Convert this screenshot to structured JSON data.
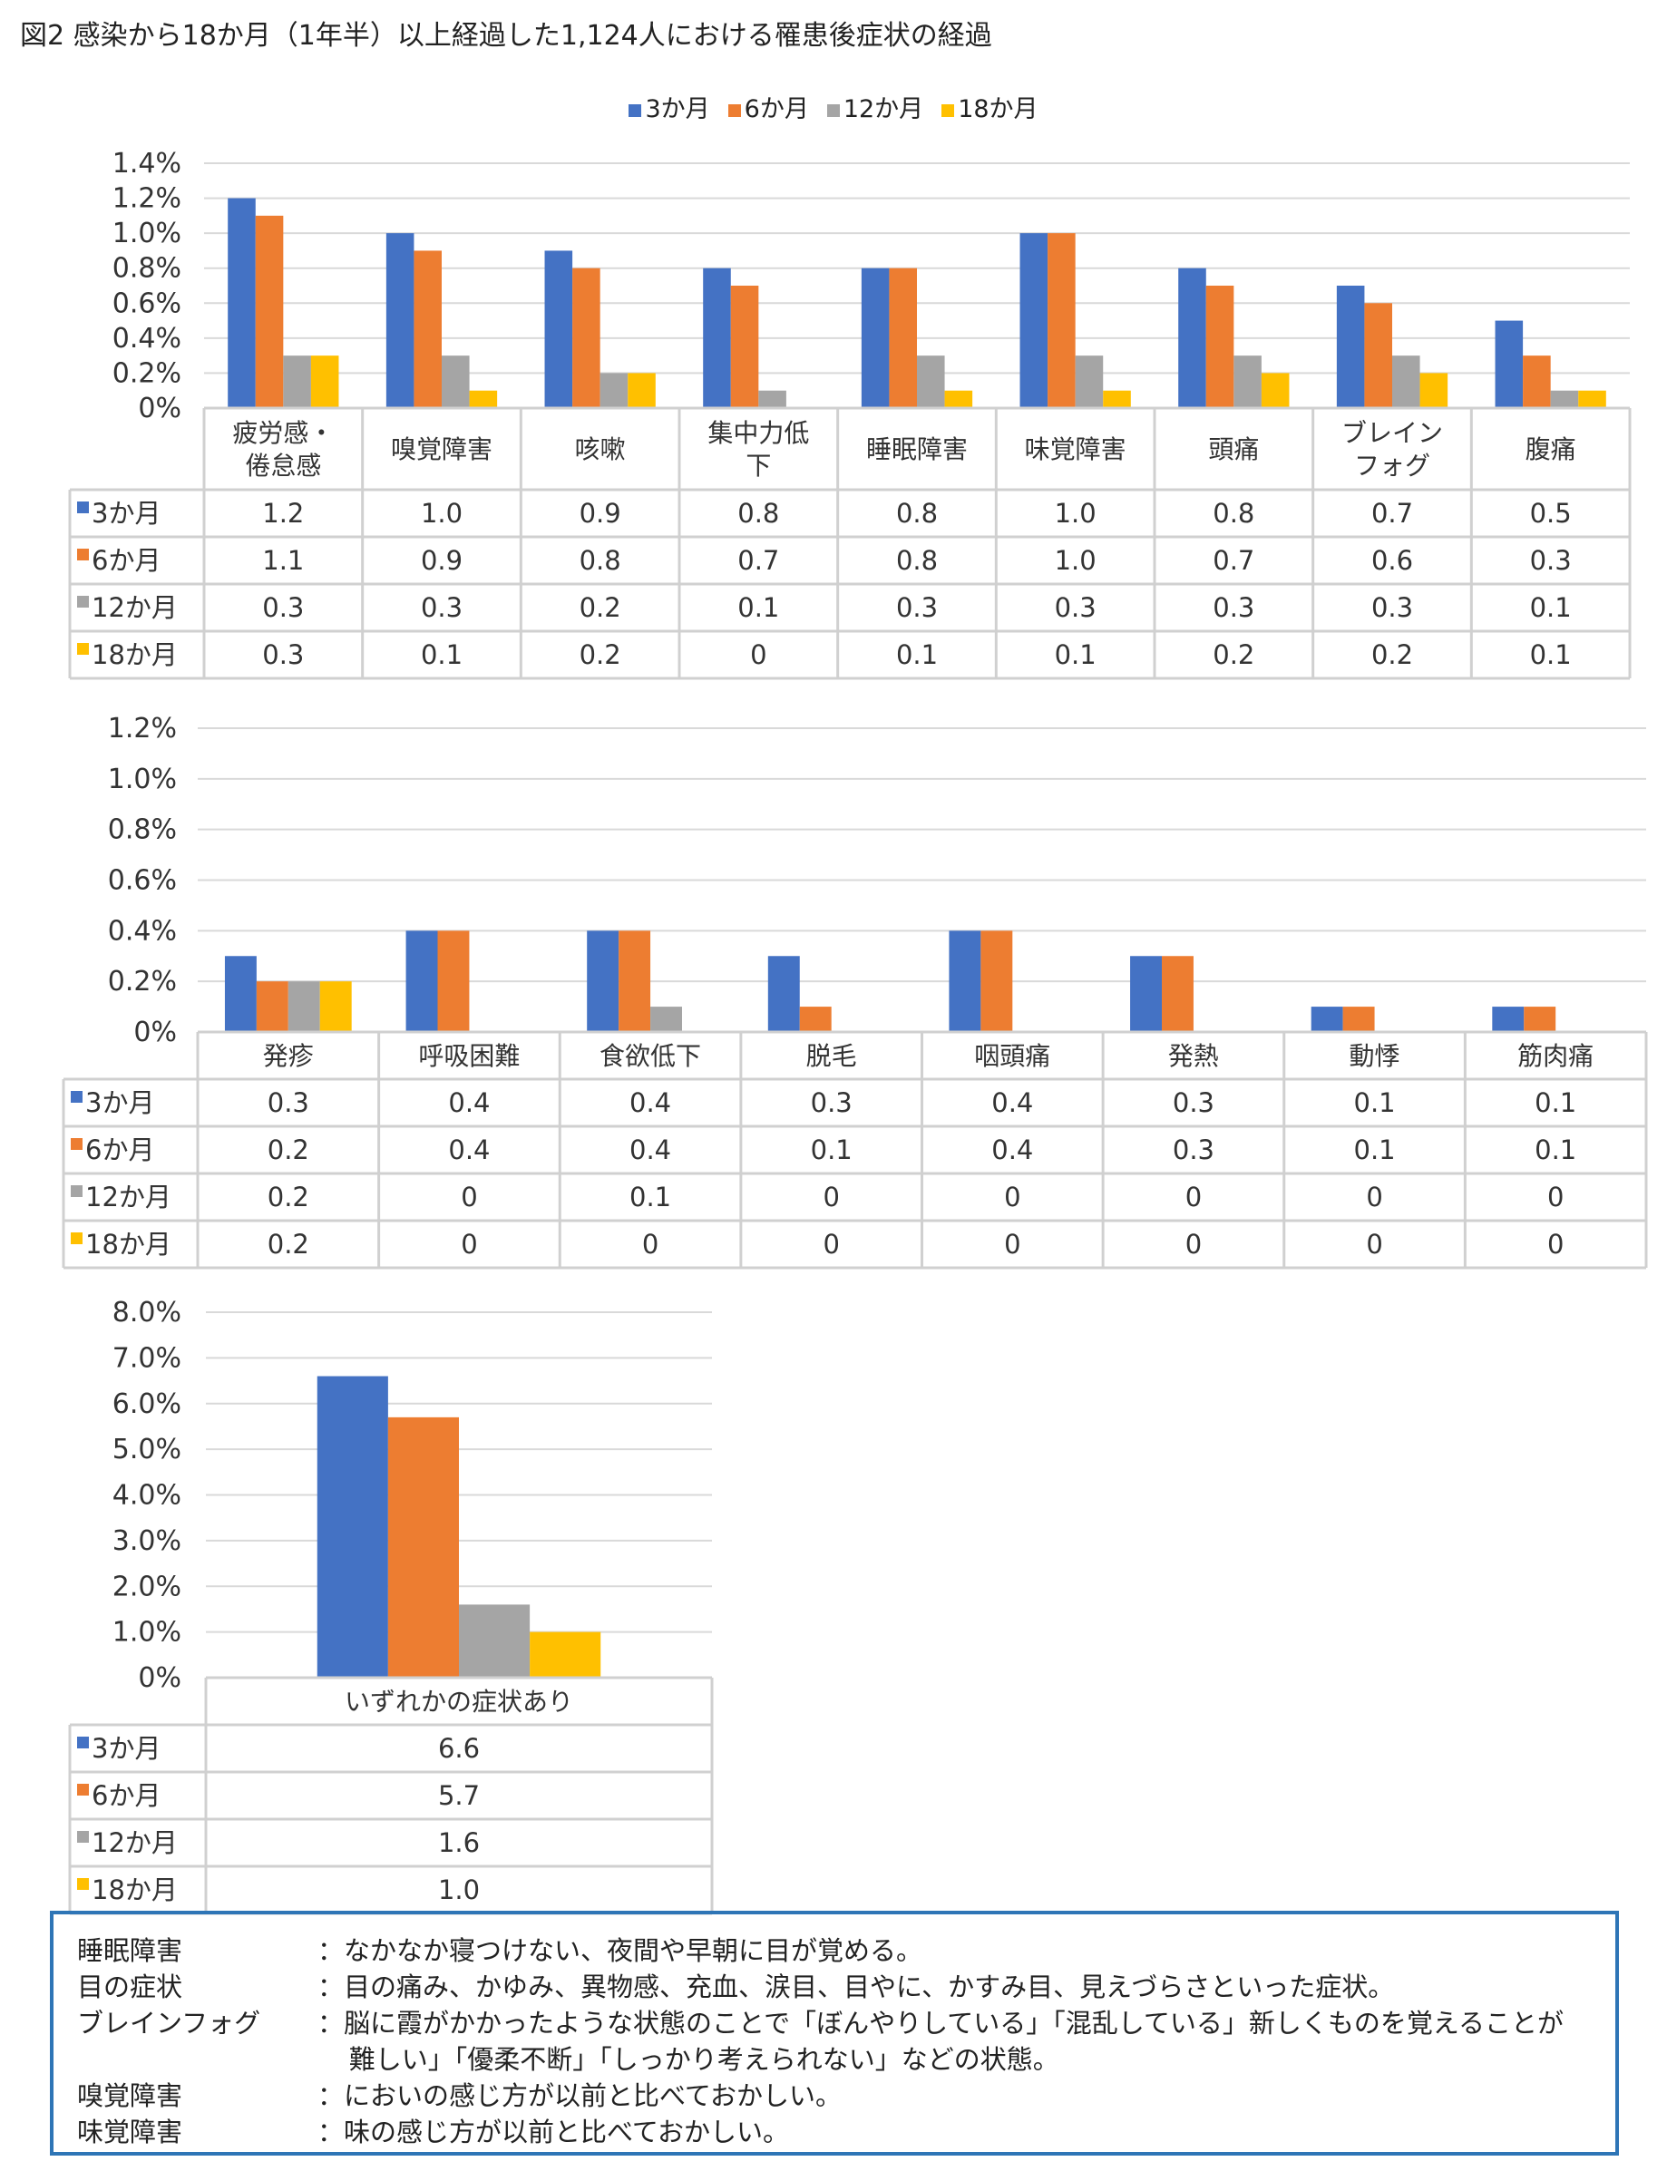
{
  "title": "図2 感染から18か月（1年半）以上経過した1,124人における罹患後症状の経過",
  "legend": [
    {
      "label": "3か月",
      "color": "#4472c4"
    },
    {
      "label": "6か月",
      "color": "#ed7d31"
    },
    {
      "label": "12か月",
      "color": "#a5a5a5"
    },
    {
      "label": "18か月",
      "color": "#ffc000"
    }
  ],
  "chart_data": [
    {
      "type": "bar",
      "categories": [
        "疲労感・倦怠感",
        "嗅覚障害",
        "咳嗽",
        "集中力低下",
        "睡眠障害",
        "味覚障害",
        "頭痛",
        "ブレインフォグ",
        "腹痛"
      ],
      "category_lines": [
        [
          "疲労感・",
          "倦怠感"
        ],
        [
          "嗅覚障害"
        ],
        [
          "咳嗽"
        ],
        [
          "集中力低",
          "下"
        ],
        [
          "睡眠障害"
        ],
        [
          "味覚障害"
        ],
        [
          "頭痛"
        ],
        [
          "ブレイン",
          "フォグ"
        ],
        [
          "腹痛"
        ]
      ],
      "series": [
        {
          "name": "3か月",
          "color": "#4472c4",
          "values": [
            1.2,
            1.0,
            0.9,
            0.8,
            0.8,
            1.0,
            0.8,
            0.7,
            0.5
          ]
        },
        {
          "name": "6か月",
          "color": "#ed7d31",
          "values": [
            1.1,
            0.9,
            0.8,
            0.7,
            0.8,
            1.0,
            0.7,
            0.6,
            0.3
          ]
        },
        {
          "name": "12か月",
          "color": "#a5a5a5",
          "values": [
            0.3,
            0.3,
            0.2,
            0.1,
            0.3,
            0.3,
            0.3,
            0.3,
            0.1
          ]
        },
        {
          "name": "18か月",
          "color": "#ffc000",
          "values": [
            0.3,
            0.1,
            0.2,
            0,
            0.1,
            0.1,
            0.2,
            0.2,
            0.1
          ]
        }
      ],
      "table_values": [
        [
          "1.2",
          "1.0",
          "0.9",
          "0.8",
          "0.8",
          "1.0",
          "0.8",
          "0.7",
          "0.5"
        ],
        [
          "1.1",
          "0.9",
          "0.8",
          "0.7",
          "0.8",
          "1.0",
          "0.7",
          "0.6",
          "0.3"
        ],
        [
          "0.3",
          "0.3",
          "0.2",
          "0.1",
          "0.3",
          "0.3",
          "0.3",
          "0.3",
          "0.1"
        ],
        [
          "0.3",
          "0.1",
          "0.2",
          "0",
          "0.1",
          "0.1",
          "0.2",
          "0.2",
          "0.1"
        ]
      ],
      "y_ticks": [
        "1.4%",
        "1.2%",
        "1.0%",
        "0.8%",
        "0.6%",
        "0.4%",
        "0.2%",
        "0%"
      ],
      "ylim": [
        0,
        1.4
      ],
      "grid": true
    },
    {
      "type": "bar",
      "categories": [
        "発疹",
        "呼吸困難",
        "食欲低下",
        "脱毛",
        "咽頭痛",
        "発熱",
        "動悸",
        "筋肉痛"
      ],
      "category_lines": [
        [
          "発疹"
        ],
        [
          "呼吸困難"
        ],
        [
          "食欲低下"
        ],
        [
          "脱毛"
        ],
        [
          "咽頭痛"
        ],
        [
          "発熱"
        ],
        [
          "動悸"
        ],
        [
          "筋肉痛"
        ]
      ],
      "series": [
        {
          "name": "3か月",
          "color": "#4472c4",
          "values": [
            0.3,
            0.4,
            0.4,
            0.3,
            0.4,
            0.3,
            0.1,
            0.1
          ]
        },
        {
          "name": "6か月",
          "color": "#ed7d31",
          "values": [
            0.2,
            0.4,
            0.4,
            0.1,
            0.4,
            0.3,
            0.1,
            0.1
          ]
        },
        {
          "name": "12か月",
          "color": "#a5a5a5",
          "values": [
            0.2,
            0,
            0.1,
            0,
            0,
            0,
            0,
            0
          ]
        },
        {
          "name": "18か月",
          "color": "#ffc000",
          "values": [
            0.2,
            0,
            0,
            0,
            0,
            0,
            0,
            0
          ]
        }
      ],
      "table_values": [
        [
          "0.3",
          "0.4",
          "0.4",
          "0.3",
          "0.4",
          "0.3",
          "0.1",
          "0.1"
        ],
        [
          "0.2",
          "0.4",
          "0.4",
          "0.1",
          "0.4",
          "0.3",
          "0.1",
          "0.1"
        ],
        [
          "0.2",
          "0",
          "0.1",
          "0",
          "0",
          "0",
          "0",
          "0"
        ],
        [
          "0.2",
          "0",
          "0",
          "0",
          "0",
          "0",
          "0",
          "0"
        ]
      ],
      "y_ticks": [
        "1.2%",
        "1.0%",
        "0.8%",
        "0.6%",
        "0.4%",
        "0.2%",
        "0%"
      ],
      "ylim": [
        0,
        1.2
      ],
      "grid": true
    },
    {
      "type": "bar",
      "categories": [
        "いずれかの症状あり"
      ],
      "category_lines": [
        [
          "いずれかの症状あり"
        ]
      ],
      "series": [
        {
          "name": "3か月",
          "color": "#4472c4",
          "values": [
            6.6
          ]
        },
        {
          "name": "6か月",
          "color": "#ed7d31",
          "values": [
            5.7
          ]
        },
        {
          "name": "12か月",
          "color": "#a5a5a5",
          "values": [
            1.6
          ]
        },
        {
          "name": "18か月",
          "color": "#ffc000",
          "values": [
            1.0
          ]
        }
      ],
      "table_values": [
        [
          "6.6"
        ],
        [
          "5.7"
        ],
        [
          "1.6"
        ],
        [
          "1.0"
        ]
      ],
      "y_ticks": [
        "8.0%",
        "7.0%",
        "6.0%",
        "5.0%",
        "4.0%",
        "3.0%",
        "2.0%",
        "1.0%",
        "0%"
      ],
      "ylim": [
        0,
        8
      ],
      "grid": true
    }
  ],
  "notes": [
    {
      "term": "睡眠障害",
      "text": "：なかなか寝つけない、夜間や早朝に目が覚める。"
    },
    {
      "term": "目の症状",
      "text": "：目の痛み、かゆみ、異物感、充血、涙目、目やに、かすみ目、見えづらさといった症状。"
    },
    {
      "term": "ブレインフォグ",
      "text": "：脳に霞がかかったような状態のことで「ぼんやりしている」「混乱している」新しくものを覚えることが難しい」「優柔不断」「しっかり考えられない」などの状態。"
    },
    {
      "term": "嗅覚障害",
      "text": "：においの感じ方が以前と比べておかしい。"
    },
    {
      "term": "味覚障害",
      "text": "：味の感じ方が以前と比べておかしい。"
    }
  ]
}
